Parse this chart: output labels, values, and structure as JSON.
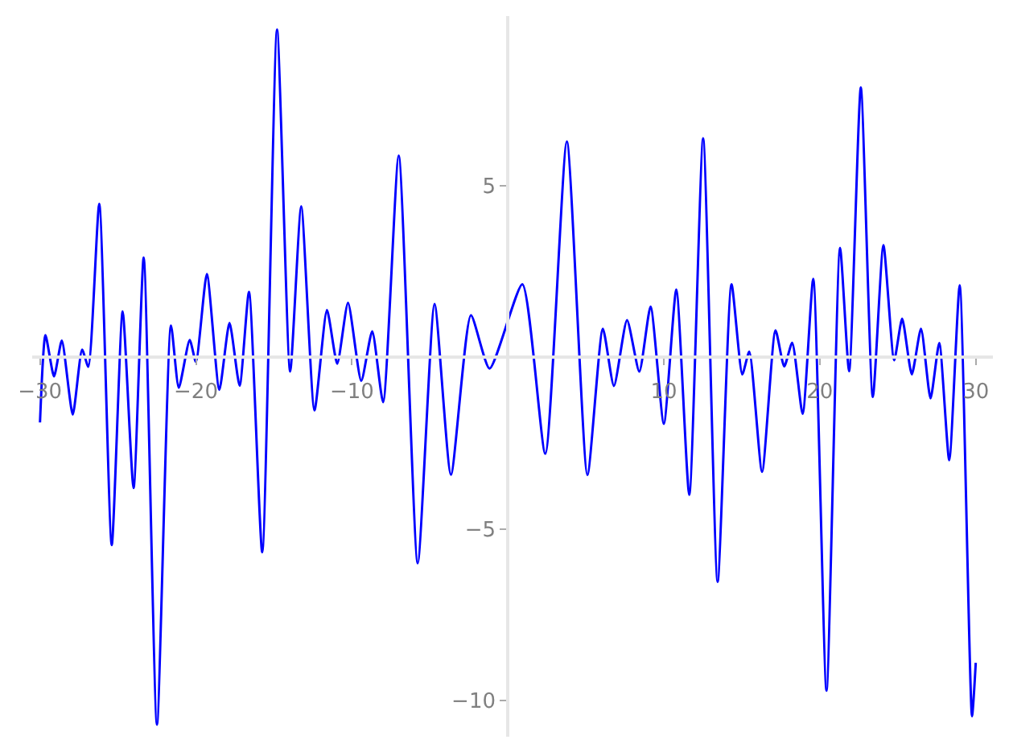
{
  "chart_data": {
    "type": "line",
    "xlim": [
      -30.5,
      31.1
    ],
    "ylim": [
      -11.05,
      9.93
    ],
    "xticks": [
      -30,
      -20,
      -10,
      10,
      20,
      30
    ],
    "yticks": [
      -10,
      -5,
      5
    ],
    "marker": "none",
    "line_style": "solid",
    "x": [
      -30.0,
      -29.65,
      -29.1,
      -28.6,
      -27.9,
      -27.3,
      -26.9,
      -26.2,
      -25.4,
      -24.7,
      -24.0,
      -23.35,
      -22.5,
      -21.6,
      -21.1,
      -20.4,
      -20.0,
      -19.3,
      -18.5,
      -17.85,
      -17.2,
      -16.6,
      -15.75,
      -14.8,
      -13.96,
      -13.25,
      -12.4,
      -11.6,
      -10.94,
      -10.25,
      -9.4,
      -8.7,
      -8.0,
      -7.0,
      -5.78,
      -4.7,
      -3.65,
      -2.37,
      -1.17,
      0.93,
      2.4,
      3.78,
      5.1,
      6.09,
      6.8,
      7.64,
      8.43,
      9.15,
      10.0,
      10.8,
      11.63,
      12.52,
      13.45,
      14.34,
      15.03,
      15.48,
      16.3,
      17.16,
      17.72,
      18.23,
      18.9,
      19.58,
      20.43,
      21.3,
      21.88,
      22.63,
      23.4,
      24.08,
      24.77,
      25.28,
      25.9,
      26.49,
      27.1,
      27.66,
      28.3,
      28.97,
      29.76,
      30.0
    ],
    "series": [
      {
        "color": "#0000ff",
        "values": [
          -1.9,
          0.64,
          -0.56,
          0.48,
          -1.67,
          0.22,
          -0.28,
          4.46,
          -5.47,
          1.33,
          -3.81,
          2.9,
          -10.7,
          0.92,
          -0.89,
          0.5,
          -0.14,
          2.42,
          -0.95,
          1.0,
          -0.83,
          1.9,
          -5.68,
          9.54,
          -0.42,
          4.39,
          -1.55,
          1.37,
          -0.19,
          1.58,
          -0.69,
          0.75,
          -1.31,
          5.87,
          -6.0,
          1.55,
          -3.42,
          1.22,
          -0.33,
          2.12,
          -2.81,
          6.28,
          -3.43,
          0.83,
          -0.84,
          1.08,
          -0.42,
          1.47,
          -1.94,
          1.97,
          -4.01,
          6.37,
          -6.54,
          2.12,
          -0.5,
          0.16,
          -3.34,
          0.78,
          -0.27,
          0.42,
          -1.65,
          2.28,
          -9.71,
          3.18,
          -0.41,
          7.85,
          -1.16,
          3.26,
          -0.09,
          1.12,
          -0.5,
          0.83,
          -1.2,
          0.41,
          -3.0,
          2.09,
          -10.45,
          -8.9
        ]
      }
    ]
  }
}
